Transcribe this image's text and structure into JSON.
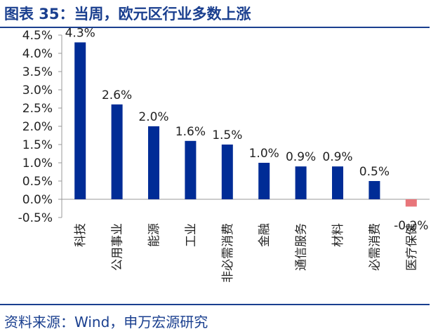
{
  "header": {
    "title": "图表 35：当周，欧元区行业多数上涨"
  },
  "footer": {
    "source": "资料来源：Wind，申万宏源研究"
  },
  "chart_data": {
    "type": "bar",
    "categories": [
      "科技",
      "公用事业",
      "能源",
      "工业",
      "非必需消费",
      "金融",
      "通信服务",
      "材料",
      "必需消费",
      "医疗保健"
    ],
    "values": [
      4.3,
      2.6,
      2.0,
      1.6,
      1.5,
      1.0,
      0.9,
      0.9,
      0.5,
      -0.2
    ],
    "data_labels": [
      "4.3%",
      "2.6%",
      "2.0%",
      "1.6%",
      "1.5%",
      "1.0%",
      "0.9%",
      "0.9%",
      "0.5%",
      "-0.2%"
    ],
    "ylim": [
      -0.5,
      4.5
    ],
    "yticks": [
      4.5,
      4.0,
      3.5,
      3.0,
      2.5,
      2.0,
      1.5,
      1.0,
      0.5,
      0.0,
      -0.5
    ],
    "ytick_labels": [
      "4.5%",
      "4.0%",
      "3.5%",
      "3.0%",
      "2.5%",
      "2.0%",
      "1.5%",
      "1.0%",
      "0.5%",
      "0.0%",
      "-0.5%"
    ],
    "colors": {
      "positive": "#002c96",
      "negative": "#e8757a",
      "axis": "#999999"
    },
    "grid": false,
    "legend": "none"
  }
}
